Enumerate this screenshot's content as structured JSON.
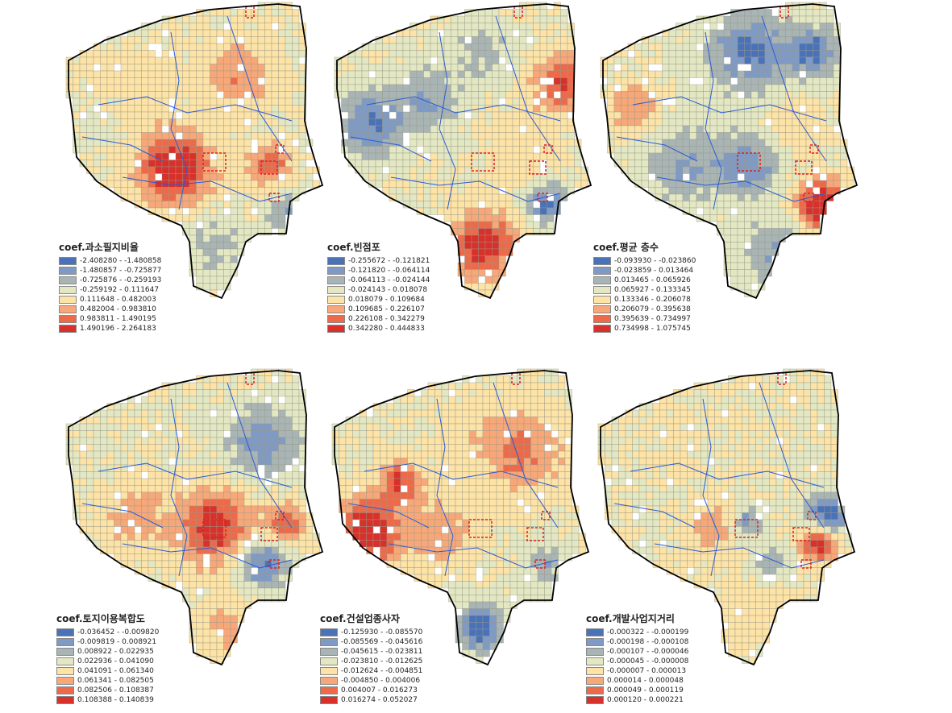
{
  "palette": [
    "#4a72b8",
    "#7f9ac4",
    "#a9b5b5",
    "#e3e8c3",
    "#fde3a6",
    "#f8a878",
    "#ec6a4a",
    "#d8302a"
  ],
  "maps": [
    {
      "title": "coef.과소필지비율",
      "classes": [
        "-2.408280 - -1.480858",
        "-1.480857 - -0.725877",
        "-0.725876 - -0.259193",
        "-0.259192 - 0.111647",
        "0.111648 - 0.482003",
        "0.482004 - 0.983810",
        "0.983811 - 1.490195",
        "1.490196 - 2.264183"
      ]
    },
    {
      "title": "coef.빈점포",
      "classes": [
        "-0.255672 - -0.121821",
        "-0.121820 - -0.064114",
        "-0.064113 - -0.024144",
        "-0.024143 - 0.018078",
        "0.018079 - 0.109684",
        "0.109685 - 0.226107",
        "0.226108 - 0.342279",
        "0.342280 - 0.444833"
      ]
    },
    {
      "title": "coef.평균 층수",
      "classes": [
        "-0.093930 - -0.023860",
        "-0.023859 - 0.013464",
        "0.013465 - 0.065926",
        "0.065927 - 0.133345",
        "0.133346 - 0.206078",
        "0.206079 - 0.395638",
        "0.395639 - 0.734997",
        "0.734998 - 1.075745"
      ]
    },
    {
      "title": "coef.토지이용복합도",
      "classes": [
        "-0.036452 - -0.009820",
        "-0.009819 - 0.008921",
        "0.008922 - 0.022935",
        "0.022936 - 0.041090",
        "0.041091 - 0.061340",
        "0.061341 - 0.082505",
        "0.082506 - 0.108387",
        "0.108388 - 0.140839"
      ]
    },
    {
      "title": "coef.건설업종사자",
      "classes": [
        "-0.125930 - -0.085570",
        "-0.085569 - -0.045616",
        "-0.045615 - -0.023811",
        "-0.023810 - -0.012625",
        "-0.012624 - -0.004851",
        "-0.004850 - 0.004006",
        "0.004007 - 0.016273",
        "0.016274 - 0.052027"
      ]
    },
    {
      "title": "coef.개발사업지거리",
      "classes": [
        "-0.000322 - -0.000199",
        "-0.000198 - -0.000108",
        "-0.000107 - -0.000046",
        "-0.000045 - -0.000008",
        "-0.000007 - 0.000013",
        "0.000014 - 0.000048",
        "0.000049 - 0.000119",
        "0.000120 - 0.000221"
      ]
    }
  ]
}
